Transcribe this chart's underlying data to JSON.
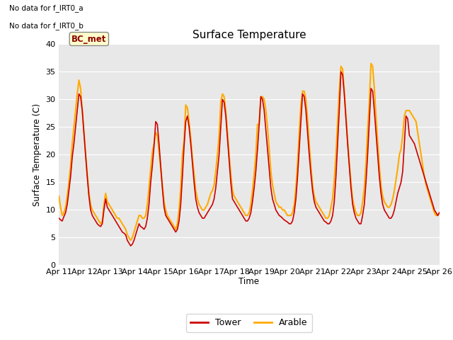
{
  "title": "Surface Temperature",
  "ylabel": "Surface Temperature (C)",
  "xlabel": "Time",
  "ylim": [
    0,
    40
  ],
  "yticks": [
    0,
    5,
    10,
    15,
    20,
    25,
    30,
    35,
    40
  ],
  "xtick_labels": [
    "Apr 11",
    "Apr 12",
    "Apr 13",
    "Apr 14",
    "Apr 15",
    "Apr 16",
    "Apr 17",
    "Apr 18",
    "Apr 19",
    "Apr 20",
    "Apr 21",
    "Apr 22",
    "Apr 23",
    "Apr 24",
    "Apr 25",
    "Apr 26"
  ],
  "no_data_text": [
    "No data for f_IRT0_a",
    "No data for f_IRT0_b"
  ],
  "bc_met_label": "BC_met",
  "tower_color": "#cc0000",
  "arable_color": "#ffaa00",
  "plot_bg_color": "#e8e8e8",
  "fig_bg_color": "#ffffff",
  "legend_tower": "Tower",
  "legend_arable": "Arable",
  "tower_data": [
    8.5,
    8.2,
    8.0,
    8.8,
    9.5,
    11.0,
    13.5,
    16.0,
    19.5,
    22.0,
    25.0,
    28.0,
    31.0,
    30.5,
    28.0,
    24.0,
    20.0,
    16.0,
    12.5,
    10.0,
    9.0,
    8.5,
    8.0,
    7.5,
    7.2,
    7.0,
    7.5,
    10.0,
    12.0,
    10.5,
    10.0,
    9.5,
    9.0,
    8.5,
    8.0,
    7.5,
    7.0,
    6.5,
    6.0,
    5.8,
    5.5,
    4.5,
    4.0,
    3.5,
    3.8,
    4.5,
    5.5,
    6.5,
    7.5,
    7.0,
    6.8,
    6.5,
    7.0,
    8.5,
    11.0,
    15.0,
    18.0,
    21.5,
    26.0,
    25.5,
    22.0,
    18.0,
    14.0,
    10.5,
    9.0,
    8.5,
    8.0,
    7.5,
    7.0,
    6.5,
    6.0,
    6.5,
    8.0,
    11.0,
    16.0,
    21.5,
    26.0,
    27.0,
    25.0,
    22.0,
    18.5,
    15.0,
    12.0,
    10.5,
    9.5,
    9.0,
    8.5,
    8.5,
    9.0,
    9.5,
    10.0,
    10.5,
    11.0,
    12.0,
    14.0,
    17.0,
    20.0,
    25.0,
    30.0,
    29.5,
    27.0,
    23.0,
    19.0,
    15.0,
    12.0,
    11.5,
    11.0,
    10.5,
    10.0,
    9.5,
    9.0,
    8.5,
    8.0,
    8.0,
    8.5,
    9.5,
    11.5,
    14.0,
    17.0,
    21.0,
    25.5,
    30.5,
    30.0,
    28.0,
    24.5,
    21.0,
    17.5,
    14.0,
    12.0,
    11.0,
    10.0,
    9.5,
    9.0,
    8.8,
    8.5,
    8.2,
    8.0,
    7.8,
    7.5,
    7.5,
    8.0,
    9.5,
    12.0,
    16.0,
    21.0,
    26.0,
    31.0,
    30.5,
    28.0,
    24.0,
    20.0,
    16.5,
    13.5,
    11.5,
    10.5,
    10.0,
    9.5,
    9.0,
    8.5,
    8.0,
    7.8,
    7.5,
    7.5,
    8.0,
    9.0,
    11.5,
    16.0,
    22.0,
    28.0,
    35.0,
    34.5,
    31.0,
    26.5,
    22.0,
    18.0,
    14.0,
    11.0,
    9.5,
    8.5,
    8.0,
    7.5,
    7.5,
    9.0,
    11.0,
    15.0,
    20.0,
    26.0,
    32.0,
    31.5,
    28.0,
    24.0,
    20.0,
    16.0,
    13.0,
    11.0,
    10.0,
    9.5,
    9.0,
    8.5,
    8.5,
    9.0,
    10.0,
    11.5,
    13.0,
    14.0,
    15.0,
    17.0,
    22.0,
    27.0,
    26.5,
    23.5,
    23.0,
    22.5,
    22.0,
    21.0,
    20.0,
    19.0,
    18.0,
    17.0,
    16.0,
    15.0,
    14.0,
    13.0,
    12.0,
    11.0,
    10.0,
    9.5,
    9.0,
    9.5
  ],
  "arable_data": [
    12.5,
    10.5,
    9.0,
    9.5,
    10.5,
    12.5,
    15.0,
    18.0,
    22.0,
    25.0,
    28.0,
    31.0,
    33.5,
    32.0,
    28.0,
    24.0,
    20.0,
    16.5,
    13.0,
    11.0,
    10.0,
    9.5,
    9.0,
    8.5,
    8.0,
    7.5,
    8.0,
    11.0,
    13.0,
    11.5,
    11.0,
    10.5,
    10.0,
    9.5,
    9.0,
    8.5,
    8.5,
    8.0,
    7.5,
    7.0,
    6.5,
    5.5,
    5.0,
    4.5,
    5.0,
    6.0,
    7.0,
    8.0,
    9.0,
    9.0,
    8.5,
    8.5,
    9.0,
    11.0,
    14.0,
    17.5,
    20.5,
    22.0,
    24.0,
    23.5,
    20.5,
    17.5,
    14.5,
    11.5,
    10.0,
    9.0,
    8.5,
    8.0,
    7.5,
    7.0,
    6.5,
    7.5,
    10.0,
    14.0,
    20.0,
    22.5,
    29.0,
    28.5,
    26.0,
    23.0,
    19.5,
    16.5,
    13.5,
    12.0,
    11.0,
    10.5,
    10.0,
    10.0,
    10.5,
    11.0,
    12.0,
    13.0,
    13.5,
    14.5,
    17.0,
    20.0,
    23.5,
    29.5,
    31.0,
    30.5,
    28.0,
    24.0,
    20.0,
    16.5,
    13.5,
    12.5,
    12.0,
    11.5,
    11.0,
    10.5,
    10.0,
    9.5,
    9.0,
    9.0,
    9.5,
    11.0,
    13.5,
    16.5,
    20.0,
    25.5,
    25.5,
    30.5,
    30.5,
    30.0,
    28.0,
    25.0,
    21.0,
    17.0,
    14.5,
    13.0,
    11.5,
    11.0,
    10.5,
    10.5,
    10.0,
    10.0,
    9.5,
    9.0,
    9.0,
    9.0,
    9.5,
    11.0,
    14.0,
    18.5,
    24.0,
    29.0,
    31.5,
    31.5,
    30.0,
    26.5,
    22.0,
    18.0,
    14.5,
    12.5,
    11.5,
    11.0,
    10.5,
    10.0,
    9.5,
    9.0,
    8.5,
    8.5,
    9.0,
    10.5,
    12.0,
    15.5,
    20.0,
    26.0,
    31.5,
    36.0,
    35.5,
    31.5,
    27.0,
    22.5,
    18.5,
    15.0,
    12.0,
    10.5,
    9.5,
    9.0,
    9.0,
    9.5,
    11.5,
    14.0,
    18.5,
    24.5,
    29.5,
    36.5,
    36.0,
    32.0,
    27.0,
    22.5,
    18.0,
    14.5,
    12.5,
    11.5,
    11.0,
    10.5,
    10.5,
    11.0,
    12.0,
    13.5,
    15.5,
    17.5,
    20.0,
    21.0,
    23.5,
    27.0,
    28.0,
    28.0,
    28.0,
    27.5,
    27.0,
    26.5,
    26.0,
    24.0,
    22.0,
    20.0,
    18.0,
    16.0,
    14.5,
    13.5,
    12.5,
    11.5,
    10.5,
    9.5,
    9.0,
    9.0,
    9.5
  ]
}
